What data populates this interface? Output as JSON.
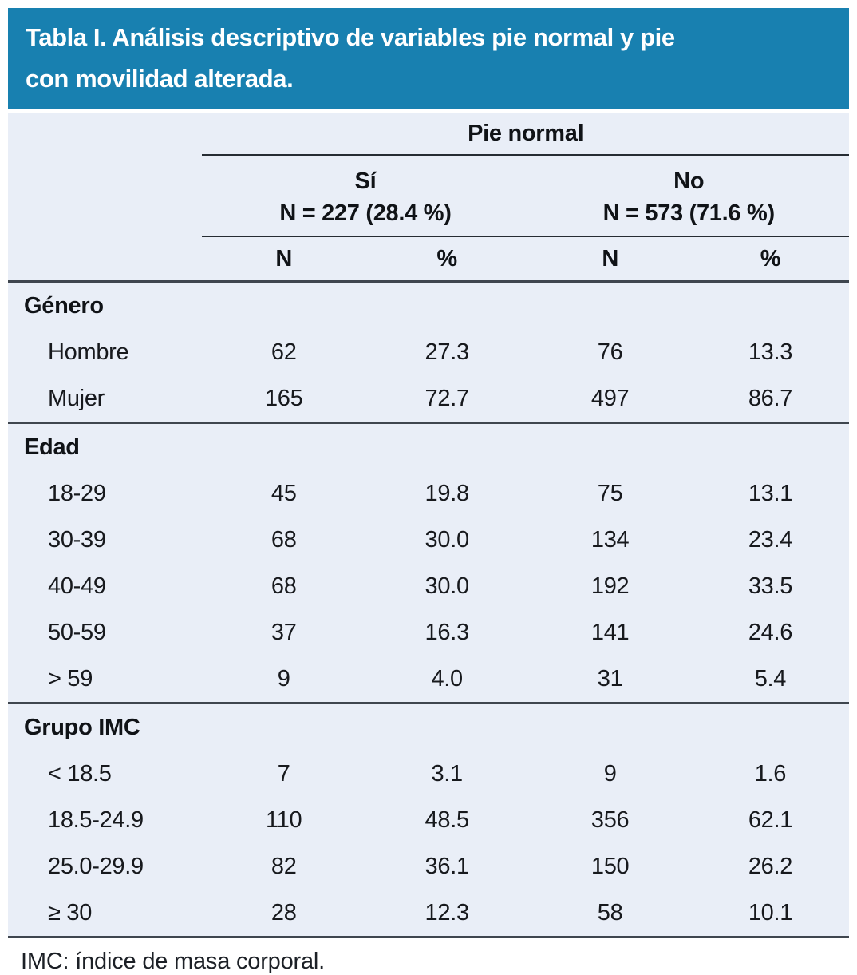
{
  "title": {
    "lines": [
      "Tabla I. Análisis descriptivo de variables pie normal y pie",
      "con movilidad alterada."
    ]
  },
  "table": {
    "group_header": "Pie normal",
    "col_groups": [
      {
        "label": "Sí",
        "sub": "N = 227 (28.4 %)"
      },
      {
        "label": "No",
        "sub": "N = 573 (71.6 %)"
      }
    ],
    "col_headers": [
      "N",
      "%",
      "N",
      "%"
    ],
    "sections": [
      {
        "name": "Género",
        "rows": [
          {
            "label": "Hombre",
            "values": [
              "62",
              "27.3",
              "76",
              "13.3"
            ]
          },
          {
            "label": "Mujer",
            "values": [
              "165",
              "72.7",
              "497",
              "86.7"
            ]
          }
        ]
      },
      {
        "name": "Edad",
        "rows": [
          {
            "label": "18-29",
            "values": [
              "45",
              "19.8",
              "75",
              "13.1"
            ]
          },
          {
            "label": "30-39",
            "values": [
              "68",
              "30.0",
              "134",
              "23.4"
            ]
          },
          {
            "label": "40-49",
            "values": [
              "68",
              "30.0",
              "192",
              "33.5"
            ]
          },
          {
            "label": "50-59",
            "values": [
              "37",
              "16.3",
              "141",
              "24.6"
            ]
          },
          {
            "label": "> 59",
            "values": [
              "9",
              "4.0",
              "31",
              "5.4"
            ]
          }
        ]
      },
      {
        "name": "Grupo IMC",
        "rows": [
          {
            "label": "< 18.5",
            "values": [
              "7",
              "3.1",
              "9",
              "1.6"
            ]
          },
          {
            "label": "18.5-24.9",
            "values": [
              "110",
              "48.5",
              "356",
              "62.1"
            ]
          },
          {
            "label": "25.0-29.9",
            "values": [
              "82",
              "36.1",
              "150",
              "26.2"
            ]
          },
          {
            "label": "≥ 30",
            "values": [
              "28",
              "12.3",
              "58",
              "10.1"
            ]
          }
        ]
      }
    ]
  },
  "footnote": "IMC: índice de masa corporal.",
  "colors": {
    "title_bar_bg": "#1880b0",
    "title_text": "#ffffff",
    "table_bg": "#e9eef7",
    "rule_thin": "#262c33",
    "rule_thick": "#3f464f"
  }
}
